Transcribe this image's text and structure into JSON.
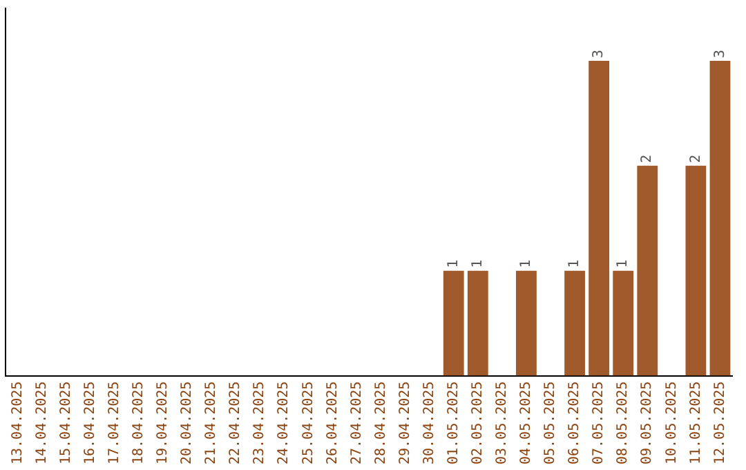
{
  "chart_data": {
    "type": "bar",
    "categories": [
      "13.04.2025",
      "14.04.2025",
      "15.04.2025",
      "16.04.2025",
      "17.04.2025",
      "18.04.2025",
      "19.04.2025",
      "20.04.2025",
      "21.04.2025",
      "22.04.2025",
      "23.04.2025",
      "24.04.2025",
      "25.04.2025",
      "26.04.2025",
      "27.04.2025",
      "28.04.2025",
      "29.04.2025",
      "30.04.2025",
      "01.05.2025",
      "02.05.2025",
      "03.05.2025",
      "04.05.2025",
      "05.05.2025",
      "06.05.2025",
      "07.05.2025",
      "08.05.2025",
      "09.05.2025",
      "10.05.2025",
      "11.05.2025",
      "12.05.2025"
    ],
    "values": [
      null,
      null,
      null,
      null,
      null,
      null,
      null,
      null,
      null,
      null,
      null,
      null,
      null,
      null,
      null,
      null,
      null,
      null,
      1,
      1,
      null,
      1,
      null,
      1,
      3,
      1,
      2,
      null,
      2,
      3
    ],
    "data_labels": true,
    "color": "#a0592a",
    "grid": false,
    "legend": false,
    "tick_labels": "x"
  }
}
